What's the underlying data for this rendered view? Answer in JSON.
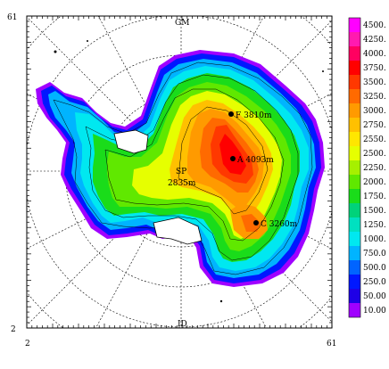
{
  "corner_labels": {
    "top_left": "61",
    "bottom_left": "2",
    "bottom_x_left": "2",
    "bottom_x_right": "61"
  },
  "meridian_labels": {
    "top": "GM",
    "bottom": "ID"
  },
  "pole_label": "SP",
  "annotations": [
    {
      "id": "F",
      "label": "F 3810m"
    },
    {
      "id": "A",
      "label": "A 4093m"
    },
    {
      "id": "C",
      "label": "C 3260m"
    },
    {
      "id": "SP",
      "label": "2835m"
    }
  ],
  "legend": {
    "levels": [
      {
        "value": "4500.",
        "color": "#ff00ff"
      },
      {
        "value": "4250.",
        "color": "#ff1ab0"
      },
      {
        "value": "4000.",
        "color": "#ff0060"
      },
      {
        "value": "3750.",
        "color": "#ff0000"
      },
      {
        "value": "3500.",
        "color": "#ff3800"
      },
      {
        "value": "3250.",
        "color": "#ff6a00"
      },
      {
        "value": "3000.",
        "color": "#ff9a00"
      },
      {
        "value": "2750.",
        "color": "#ffc000"
      },
      {
        "value": "2550.",
        "color": "#ffe600"
      },
      {
        "value": "2500.",
        "color": "#e6ff00"
      },
      {
        "value": "2250.",
        "color": "#a6f000"
      },
      {
        "value": "2000.",
        "color": "#60e800"
      },
      {
        "value": "1750.",
        "color": "#1adc1a"
      },
      {
        "value": "1500.",
        "color": "#00d27a"
      },
      {
        "value": "1250.",
        "color": "#00e0c0"
      },
      {
        "value": "1000.",
        "color": "#00e8f0"
      },
      {
        "value": "750.0",
        "color": "#00b4ff"
      },
      {
        "value": "500.0",
        "color": "#0064ff"
      },
      {
        "value": "250.0",
        "color": "#0018ff"
      },
      {
        "value": "50.00",
        "color": "#1e00e6"
      },
      {
        "value": "10.00",
        "color": "#a000ff"
      }
    ]
  }
}
